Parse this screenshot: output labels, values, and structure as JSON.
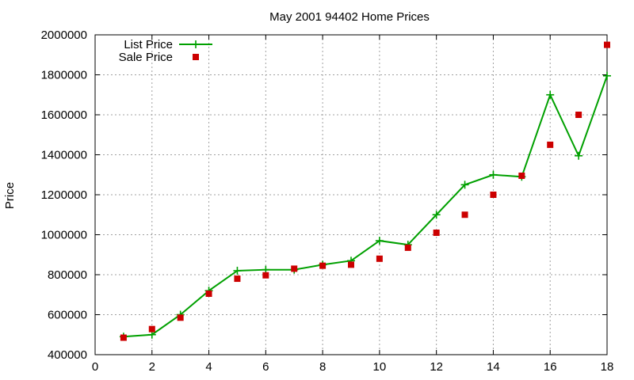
{
  "chart_data": {
    "type": "line",
    "title": "May 2001 94402 Home Prices",
    "xlabel": "",
    "ylabel": "Price",
    "xlim": [
      0,
      18
    ],
    "ylim": [
      400000,
      2000000
    ],
    "x_ticks": [
      0,
      2,
      4,
      6,
      8,
      10,
      12,
      14,
      16,
      18
    ],
    "y_ticks": [
      400000,
      600000,
      800000,
      1000000,
      1200000,
      1400000,
      1600000,
      1800000,
      2000000
    ],
    "grid": true,
    "legend_position": "top-left",
    "series": [
      {
        "name": "List Price",
        "style": "line+cross",
        "color": "#00a000",
        "x": [
          1,
          2,
          3,
          4,
          5,
          6,
          7,
          8,
          9,
          10,
          11,
          12,
          13,
          14,
          15,
          16,
          17,
          18
        ],
        "y": [
          490000,
          500000,
          600000,
          720000,
          820000,
          825000,
          825000,
          850000,
          870000,
          970000,
          950000,
          1100000,
          1250000,
          1300000,
          1290000,
          1700000,
          1395000,
          1795000
        ]
      },
      {
        "name": "Sale Price",
        "style": "square",
        "color": "#cc0000",
        "x": [
          1,
          2,
          3,
          4,
          5,
          6,
          7,
          8,
          9,
          10,
          11,
          12,
          13,
          14,
          15,
          16,
          17,
          18
        ],
        "y": [
          485000,
          528000,
          585000,
          705000,
          780000,
          797000,
          830000,
          845000,
          850000,
          880000,
          935000,
          1010000,
          1100000,
          1200000,
          1295000,
          1450000,
          1600000,
          1950000
        ]
      }
    ]
  }
}
